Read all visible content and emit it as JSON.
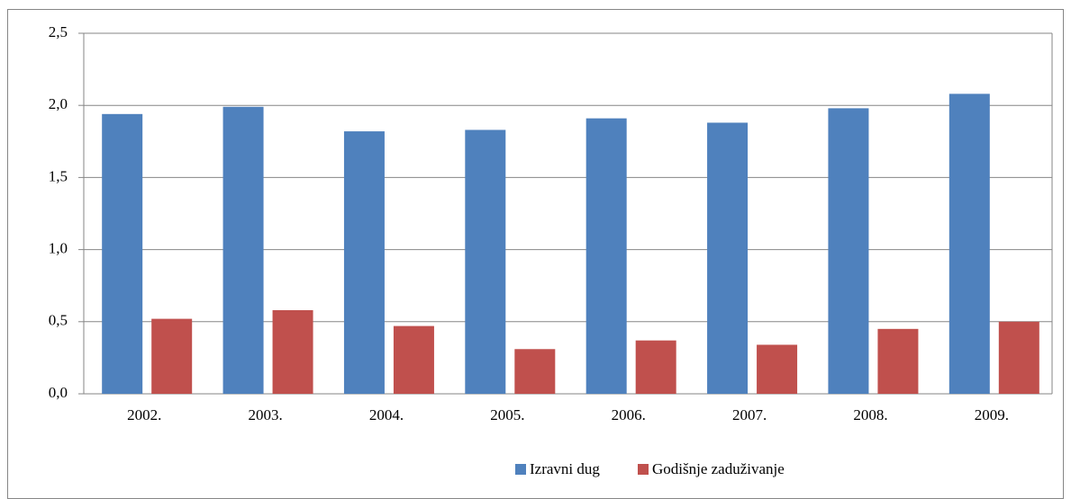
{
  "chart_data": {
    "type": "bar",
    "categories": [
      "2002.",
      "2003.",
      "2004.",
      "2005.",
      "2006.",
      "2007.",
      "2008.",
      "2009."
    ],
    "series": [
      {
        "name": "Izravni dug",
        "color": "#4f81bd",
        "values": [
          1.94,
          1.99,
          1.82,
          1.83,
          1.91,
          1.88,
          1.98,
          2.08
        ]
      },
      {
        "name": "Godišnje zaduživanje",
        "color": "#c0504d",
        "values": [
          0.52,
          0.58,
          0.47,
          0.31,
          0.37,
          0.34,
          0.45,
          0.5
        ]
      }
    ],
    "ylim": [
      0,
      2.5
    ],
    "yticks": [
      {
        "value": 0,
        "label": "0,0"
      },
      {
        "value": 0.5,
        "label": "0,5"
      },
      {
        "value": 1,
        "label": "1,0"
      },
      {
        "value": 1.5,
        "label": "1,5"
      },
      {
        "value": 2,
        "label": "2,0"
      },
      {
        "value": 2.5,
        "label": "2,5"
      }
    ],
    "grid": true,
    "legend": "bottom"
  }
}
